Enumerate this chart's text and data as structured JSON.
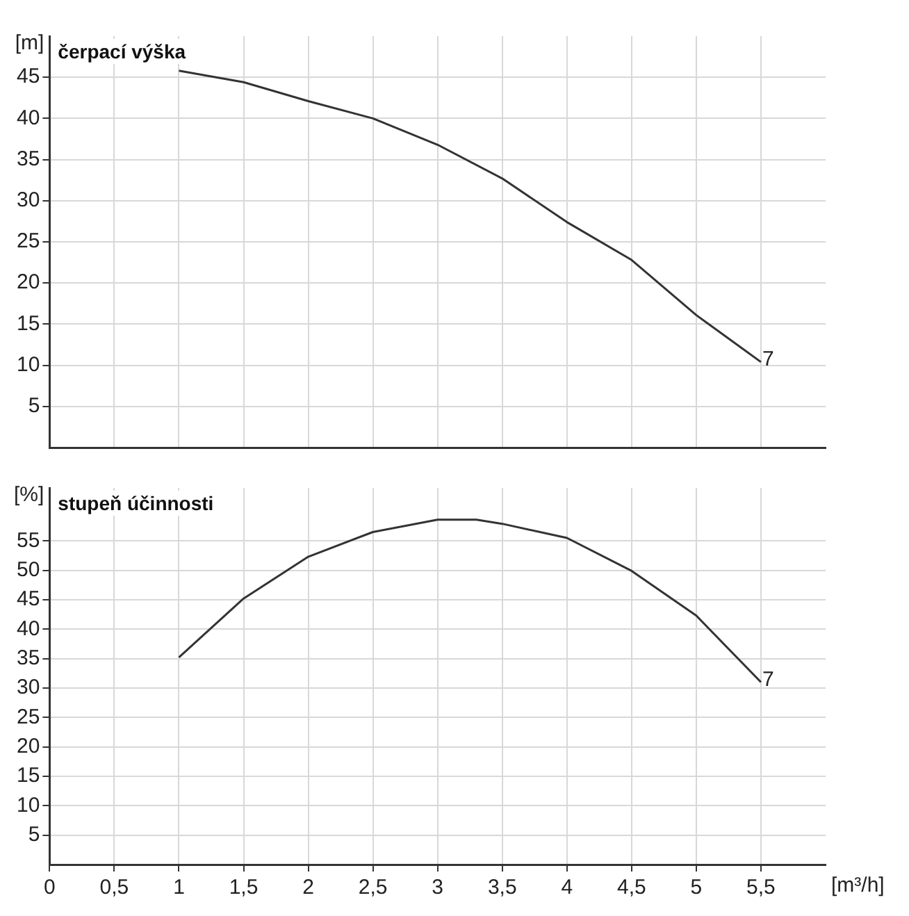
{
  "chart_data": [
    {
      "type": "line",
      "title": "čerpací výška",
      "ylabel": "[m]",
      "tick_labels": "y",
      "grid": true,
      "marker": "none",
      "line_style": "solid",
      "xlim": [
        0,
        6
      ],
      "xticks": [
        {
          "value": 0,
          "label": null
        },
        {
          "value": 0.5,
          "label": null
        },
        {
          "value": 1,
          "label": null
        },
        {
          "value": 1.5,
          "label": null
        },
        {
          "value": 2,
          "label": null
        },
        {
          "value": 2.5,
          "label": null
        },
        {
          "value": 3,
          "label": null
        },
        {
          "value": 3.5,
          "label": null
        },
        {
          "value": 4,
          "label": null
        },
        {
          "value": 4.5,
          "label": null
        },
        {
          "value": 5,
          "label": null
        },
        {
          "value": 5.5,
          "label": null
        }
      ],
      "ylim": [
        0,
        50
      ],
      "yticks": [
        5,
        10,
        15,
        20,
        25,
        30,
        35,
        40,
        45
      ],
      "x": [
        1,
        1.5,
        2,
        2.5,
        3,
        3.5,
        4,
        4.5,
        5,
        5.5
      ],
      "series": [
        {
          "color": "#333333",
          "values": [
            45.8,
            44.4,
            42.1,
            40,
            36.8,
            32.7,
            27.4,
            22.8,
            16.1,
            10.4
          ]
        }
      ],
      "annotations": [
        {
          "text": "7",
          "x": 5.5,
          "y": 10.4
        }
      ]
    },
    {
      "type": "line",
      "title": "stupeň účinnosti",
      "ylabel": "[%]",
      "xlabel": "[m³/h]",
      "grid": true,
      "marker": "none",
      "line_style": "solid",
      "xlim": [
        0,
        6
      ],
      "xticks": [
        0,
        {
          "value": 0.5,
          "label": "0,5"
        },
        1,
        {
          "value": 1.5,
          "label": "1,5"
        },
        2,
        {
          "value": 2.5,
          "label": "2,5"
        },
        3,
        {
          "value": 3.5,
          "label": "3,5"
        },
        4,
        {
          "value": 4.5,
          "label": "4,5"
        },
        5,
        {
          "value": 5.5,
          "label": "5,5"
        }
      ],
      "ylim": [
        0,
        64
      ],
      "yticks": [
        5,
        10,
        15,
        20,
        25,
        30,
        35,
        40,
        45,
        50,
        55
      ],
      "x": [
        1,
        1.5,
        2,
        2.5,
        3,
        3.3,
        3.5,
        4,
        4.5,
        5,
        5.5
      ],
      "series": [
        {
          "color": "#333333",
          "values": [
            35.2,
            45.2,
            52.3,
            56.5,
            58.6,
            58.6,
            57.9,
            55.5,
            49.9,
            42.3,
            31
          ]
        }
      ],
      "annotations": [
        {
          "text": "7",
          "x": 5.5,
          "y": 31
        }
      ]
    }
  ]
}
